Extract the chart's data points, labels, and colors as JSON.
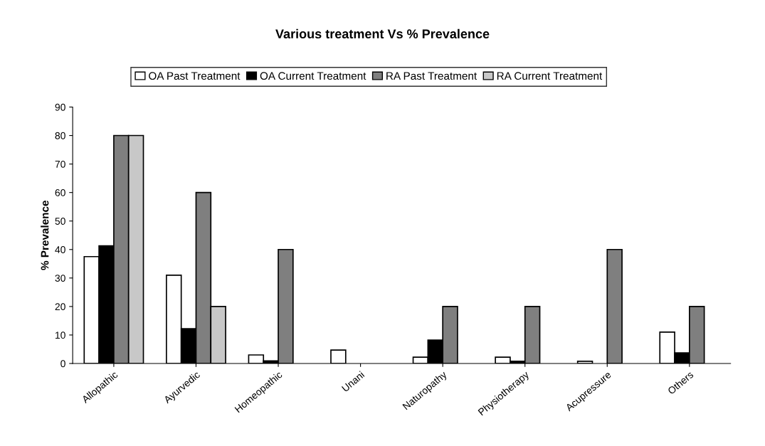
{
  "chart_data": {
    "type": "bar",
    "title": "Various treatment Vs % Prevalence",
    "ylabel": "% Prevalence",
    "categories": [
      "Allopathic",
      "Ayurvedic",
      "Homeopathic",
      "Unani",
      "Naturopathy",
      "Physiotherapy",
      "Acupressure",
      "Others"
    ],
    "series": [
      {
        "name": "OA Past Treatment",
        "color": "#ffffff",
        "values": [
          37.5,
          31,
          3,
          4.7,
          2.2,
          2.2,
          0.8,
          11
        ]
      },
      {
        "name": "OA Current Treatment",
        "color": "#000000",
        "values": [
          41.3,
          12.2,
          0.9,
          null,
          8.2,
          0.8,
          null,
          3.7
        ]
      },
      {
        "name": "RA Past Treatment",
        "color": "#7f7f7f",
        "values": [
          80,
          60,
          40,
          null,
          20,
          20,
          40,
          20
        ]
      },
      {
        "name": "RA Current Treatment",
        "color": "#c8c8c8",
        "values": [
          80,
          20,
          null,
          null,
          null,
          null,
          null,
          null
        ]
      }
    ],
    "ylim": [
      0,
      90
    ],
    "yticks": [
      0,
      10,
      20,
      30,
      40,
      50,
      60,
      70,
      80,
      90
    ],
    "grid": false,
    "legend": "top"
  }
}
